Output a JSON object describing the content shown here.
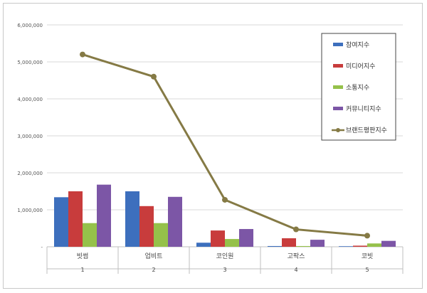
{
  "chart_data": {
    "type": "bar",
    "categories": [
      "빗썸",
      "업비트",
      "코인원",
      "고팍스",
      "코빗"
    ],
    "category_index": [
      "1",
      "2",
      "3",
      "4",
      "5"
    ],
    "ylim": [
      0,
      6000000
    ],
    "yticks": [
      "-",
      "1,000,000",
      "2,000,000",
      "3,000,000",
      "4,000,000",
      "5,000,000",
      "6,000,000"
    ],
    "grid": true,
    "legend_position": "top-right",
    "series": [
      {
        "name": "참여지수",
        "kind": "bar",
        "color": "#3d6fbd",
        "values": [
          1340000,
          1500000,
          110000,
          20000,
          15000
        ]
      },
      {
        "name": "미디어지수",
        "kind": "bar",
        "color": "#c83c3c",
        "values": [
          1500000,
          1100000,
          440000,
          230000,
          30000
        ]
      },
      {
        "name": "소통지수",
        "kind": "bar",
        "color": "#95c14a",
        "values": [
          640000,
          640000,
          210000,
          20000,
          90000
        ]
      },
      {
        "name": "커뮤니티지수",
        "kind": "bar",
        "color": "#7c56a6",
        "values": [
          1680000,
          1350000,
          480000,
          190000,
          160000
        ]
      },
      {
        "name": "브랜드평판지수",
        "kind": "line",
        "color": "#857a45",
        "values": [
          5200000,
          4600000,
          1270000,
          470000,
          300000
        ]
      }
    ]
  }
}
